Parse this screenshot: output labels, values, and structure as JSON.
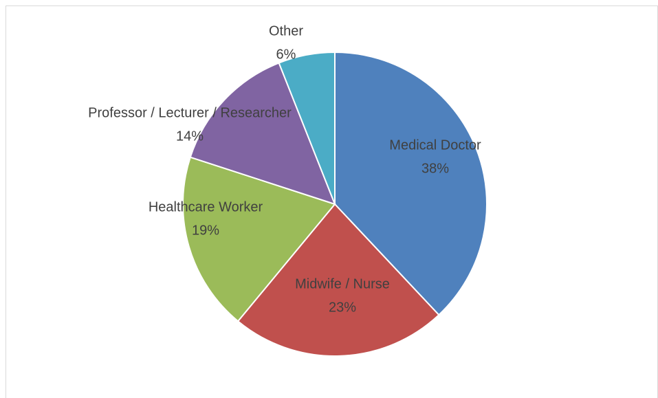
{
  "chart_data": {
    "type": "pie",
    "categories": [
      "Medical Doctor",
      "Midwife / Nurse",
      "Healthcare Worker",
      "Professor / Lecturer / Researcher",
      "Other"
    ],
    "values": [
      38,
      23,
      19,
      14,
      6
    ],
    "value_labels": [
      "38%",
      "23%",
      "19%",
      "14%",
      "6%"
    ],
    "colors": [
      "#4f81bd",
      "#c0504d",
      "#9bbb59",
      "#8064a2",
      "#4bacc6"
    ]
  }
}
